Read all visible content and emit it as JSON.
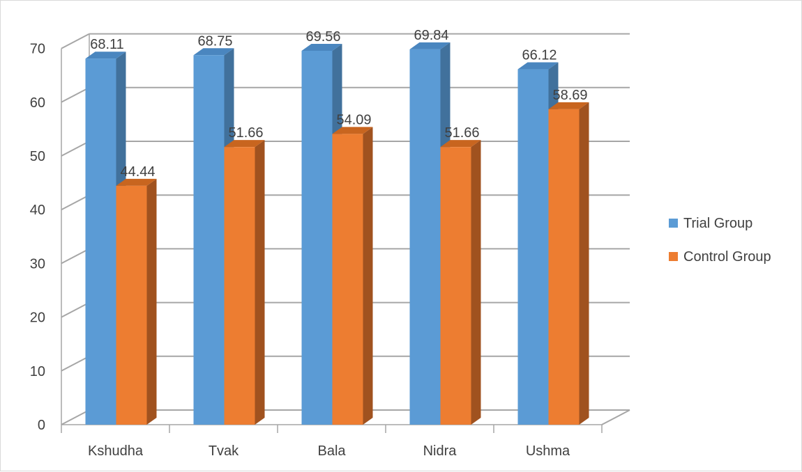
{
  "chart_data": {
    "type": "bar",
    "style": "3d-clustered-column",
    "categories": [
      "Kshudha",
      "Tvak",
      "Bala",
      "Nidra",
      "Ushma"
    ],
    "series": [
      {
        "name": "Trial Group",
        "values": [
          68.11,
          68.75,
          69.56,
          69.84,
          66.12
        ],
        "color": "#5b9bd5",
        "side_color": "#41719c",
        "top_color": "#4a86bf"
      },
      {
        "name": "Control Group",
        "values": [
          44.44,
          51.66,
          54.09,
          51.66,
          58.69
        ],
        "color": "#ed7d31",
        "side_color": "#a0521f",
        "top_color": "#c8651f"
      }
    ],
    "y_ticks": [
      "0",
      "10",
      "20",
      "30",
      "40",
      "50",
      "60",
      "70"
    ],
    "ylim": [
      0,
      70
    ],
    "grid": true,
    "legend_position": "right",
    "axis_color": "#a6a6a6"
  }
}
